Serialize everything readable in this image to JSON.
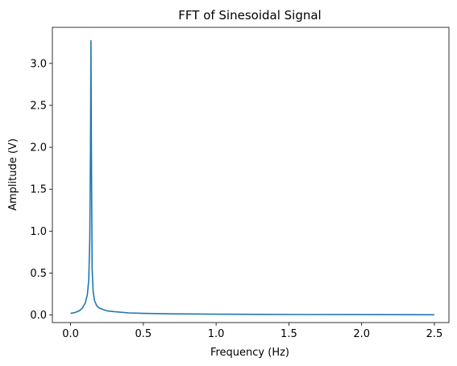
{
  "chart_data": {
    "type": "line",
    "title": "FFT of Sinesoidal Signal",
    "xlabel": "Frequency (Hz)",
    "ylabel": "Amplitude (V)",
    "xlim": [
      -0.125,
      2.6
    ],
    "ylim": [
      -0.09,
      3.43
    ],
    "grid": false,
    "x_ticks": [
      0.0,
      0.5,
      1.0,
      1.5,
      2.0,
      2.5
    ],
    "x_tick_labels": [
      "0.0",
      "0.5",
      "1.0",
      "1.5",
      "2.0",
      "2.5"
    ],
    "y_ticks": [
      0.0,
      0.5,
      1.0,
      1.5,
      2.0,
      2.5,
      3.0
    ],
    "y_tick_labels": [
      "0.0",
      "0.5",
      "1.0",
      "1.5",
      "2.0",
      "2.5",
      "3.0"
    ],
    "line_color": "#1f77b4",
    "series": [
      {
        "x": [
          0.0,
          0.03,
          0.06,
          0.08,
          0.1,
          0.115,
          0.125,
          0.132,
          0.137,
          0.14,
          0.143,
          0.148,
          0.155,
          0.165,
          0.18,
          0.2,
          0.25,
          0.3,
          0.4,
          0.5,
          0.7,
          1.0,
          1.3,
          1.6,
          2.0,
          2.3,
          2.5
        ],
        "y": [
          0.02,
          0.03,
          0.05,
          0.08,
          0.14,
          0.24,
          0.42,
          0.9,
          2.0,
          3.27,
          2.0,
          0.55,
          0.28,
          0.17,
          0.11,
          0.08,
          0.05,
          0.04,
          0.025,
          0.02,
          0.014,
          0.01,
          0.008,
          0.006,
          0.005,
          0.004,
          0.003
        ]
      }
    ]
  }
}
